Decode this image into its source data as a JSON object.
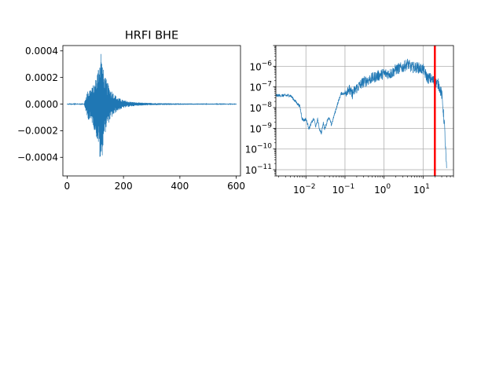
{
  "chart_data": [
    {
      "type": "line",
      "title": "HRFI BHE",
      "xlabel": "",
      "ylabel": "",
      "xlim": [
        -15,
        615
      ],
      "ylim": [
        -0.00054,
        0.00044
      ],
      "x_ticks": [
        0,
        200,
        400,
        600
      ],
      "x_tick_labels": [
        "0",
        "200",
        "400",
        "600"
      ],
      "y_ticks": [
        0.0004,
        0.0002,
        0.0,
        -0.0002,
        -0.0004
      ],
      "y_tick_labels": [
        "0.0004",
        "0.0002",
        "0.0000",
        "−0.0002",
        "−0.0004"
      ],
      "grid": false,
      "series_color": "#1f77b4",
      "envelope": {
        "description_points_x": [
          0,
          60,
          65,
          70,
          80,
          90,
          100,
          110,
          115,
          120,
          125,
          130,
          140,
          150,
          160,
          170,
          180,
          200,
          220,
          250,
          300,
          400,
          500,
          600
        ],
        "upper": [
          3e-06,
          3e-06,
          4e-05,
          9e-05,
          0.00012,
          0.00013,
          0.00018,
          0.00028,
          0.00035,
          0.00043,
          0.00032,
          0.00024,
          0.00018,
          0.00013,
          0.0001,
          7e-05,
          5e-05,
          3e-05,
          2e-05,
          1.2e-05,
          8e-06,
          5e-06,
          4e-06,
          3e-06
        ],
        "lower": [
          -3e-06,
          -3e-06,
          -4e-05,
          -0.0001,
          -0.00013,
          -0.00015,
          -0.00022,
          -0.0003,
          -0.0004,
          -0.0005,
          -0.00038,
          -0.00026,
          -0.00018,
          -0.00013,
          -0.0001,
          -7e-05,
          -5e-05,
          -3e-05,
          -2e-05,
          -1.2e-05,
          -8e-06,
          -5e-06,
          -4e-06,
          -3e-06
        ]
      }
    },
    {
      "type": "line",
      "xscale": "log",
      "yscale": "log",
      "xlim": [
        0.0017,
        60
      ],
      "ylim": [
        5e-12,
        1e-05
      ],
      "x_ticks": [
        0.01,
        0.1,
        1,
        10
      ],
      "x_tick_labels": [
        {
          "base": "10",
          "exp": "−2"
        },
        {
          "base": "10",
          "exp": "−1"
        },
        {
          "base": "10",
          "exp": "0"
        },
        {
          "base": "10",
          "exp": "1"
        }
      ],
      "y_ticks": [
        1e-06,
        1e-07,
        1e-08,
        1e-09,
        1e-10,
        1e-11
      ],
      "y_tick_labels": [
        {
          "base": "10",
          "exp": "−6"
        },
        {
          "base": "10",
          "exp": "−7"
        },
        {
          "base": "10",
          "exp": "−8"
        },
        {
          "base": "10",
          "exp": "−9"
        },
        {
          "base": "10",
          "exp": "−10"
        },
        {
          "base": "10",
          "exp": "−11"
        }
      ],
      "grid": true,
      "series_color": "#1f77b4",
      "vline": {
        "x": 20,
        "color": "#ff0000"
      },
      "spectrum": {
        "x": [
          0.0017,
          0.004,
          0.0055,
          0.007,
          0.008,
          0.009,
          0.01,
          0.012,
          0.014,
          0.016,
          0.018,
          0.02,
          0.022,
          0.025,
          0.028,
          0.03,
          0.033,
          0.036,
          0.04,
          0.045,
          0.05,
          0.06,
          0.07,
          0.08,
          0.1,
          0.12,
          0.15,
          0.2,
          0.3,
          0.5,
          0.7,
          1,
          1.5,
          2,
          3,
          4,
          5,
          7,
          10,
          13,
          15,
          20,
          25,
          30,
          35,
          40
        ],
        "y": [
          4e-08,
          4e-08,
          2e-08,
          1.2e-08,
          3e-09,
          2.5e-09,
          3e-09,
          1e-09,
          2e-09,
          3e-09,
          1.2e-09,
          3e-09,
          1e-09,
          6e-10,
          2e-09,
          1e-09,
          1.5e-09,
          3e-09,
          3e-09,
          1.5e-09,
          3e-09,
          1e-08,
          2.5e-08,
          5e-08,
          5e-08,
          1e-07,
          5e-08,
          1e-07,
          2e-07,
          3e-07,
          4e-07,
          5e-07,
          5e-07,
          8e-07,
          1e-06,
          1.5e-06,
          1e-06,
          1e-06,
          8e-07,
          3e-07,
          3e-07,
          2e-07,
          1.5e-07,
          5e-08,
          2e-09,
          1e-11
        ]
      }
    }
  ]
}
